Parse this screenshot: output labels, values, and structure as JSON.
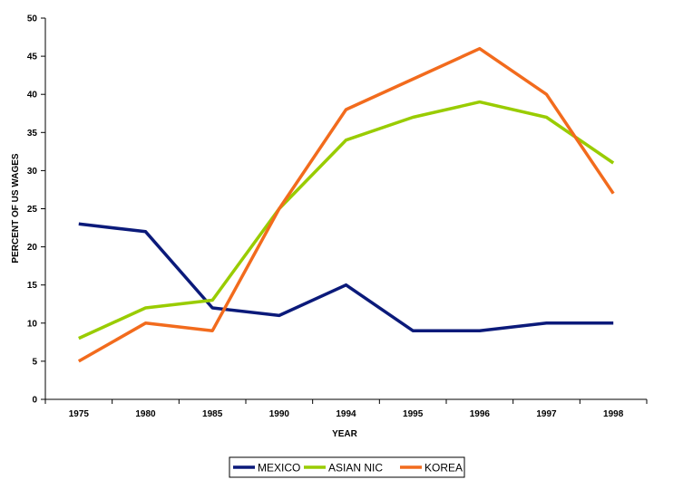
{
  "chart_data": {
    "type": "line",
    "title": "",
    "xlabel": "YEAR",
    "ylabel": "PERCENT OF US WAGES",
    "categories": [
      "1975",
      "1980",
      "1985",
      "1990",
      "1994",
      "1995",
      "1996",
      "1997",
      "1998"
    ],
    "ylim": [
      0,
      50
    ],
    "yticks": [
      "0",
      "5",
      "10",
      "15",
      "20",
      "25",
      "30",
      "35",
      "40",
      "45",
      "50"
    ],
    "grid": false,
    "legend_position": "bottom",
    "series": [
      {
        "name": "MEXICO",
        "color": "#0b1a7a",
        "values": [
          23,
          22,
          12,
          11,
          15,
          9,
          9,
          10,
          10
        ]
      },
      {
        "name": "ASIAN NIC",
        "color": "#99cc00",
        "values": [
          8,
          12,
          13,
          25,
          34,
          37,
          39,
          37,
          31
        ]
      },
      {
        "name": "KOREA",
        "color": "#f26b1d",
        "values": [
          5,
          10,
          9,
          25,
          38,
          42,
          46,
          40,
          27
        ]
      }
    ]
  }
}
